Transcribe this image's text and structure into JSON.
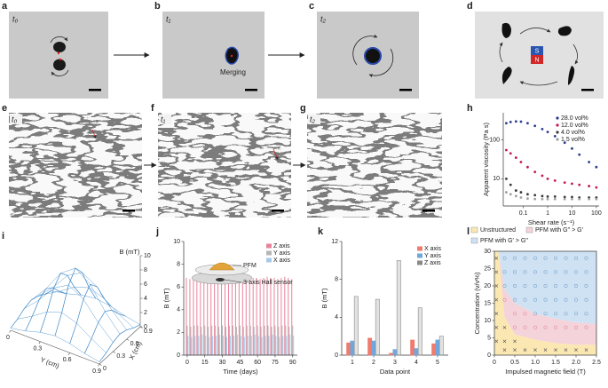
{
  "panel_letters": [
    "a",
    "b",
    "c",
    "d",
    "e",
    "f",
    "g",
    "h",
    "i",
    "j",
    "k",
    "l"
  ],
  "images": {
    "a_time": "t₀",
    "b_time": "t₁",
    "b_caption": "Merging",
    "c_time": "t₂",
    "d_s": "S",
    "d_n": "N",
    "e_time": "t₀",
    "f_time": "t₁",
    "g_time": "t₂"
  },
  "chart_data": [
    {
      "type": "scatter",
      "ylabel": "Apparent viscosity (Pa s)",
      "xlabel": "Shear rate (s⁻¹)",
      "log_x": true,
      "log_y": true,
      "legend": "upper right",
      "x": [
        0.02,
        0.03,
        0.05,
        0.08,
        0.15,
        0.3,
        0.6,
        1,
        2,
        5,
        10,
        20,
        50,
        100
      ],
      "series": [
        {
          "name": "28.0 vol%",
          "color": "#2a3b8f",
          "values": [
            270,
            290,
            300,
            295,
            270,
            230,
            190,
            160,
            125,
            85,
            60,
            42,
            27,
            20
          ]
        },
        {
          "name": "12.0 vol%",
          "color": "#c8174f",
          "values": [
            55,
            45,
            35,
            27,
            20,
            15,
            12,
            10,
            9,
            8,
            7.5,
            7,
            6.5,
            6
          ]
        },
        {
          "name": "4.0 vol%",
          "color": "#3a3a3a",
          "values": [
            10,
            7,
            5,
            4.5,
            4,
            3.8,
            3.6,
            3.5,
            3.5,
            3.4,
            3.4,
            3.3,
            3.3,
            3.3
          ]
        },
        {
          "name": "1.5 vol%",
          "color": "#a0a0a0",
          "values": [
            4.5,
            4,
            3.6,
            3.3,
            3.1,
            3,
            3,
            3,
            3,
            3,
            3,
            3,
            3,
            3
          ]
        }
      ],
      "xlim": [
        0.015,
        130
      ],
      "xticks": [
        0.1,
        1,
        10,
        100
      ],
      "ylim": [
        2,
        500
      ],
      "yticks": [
        10,
        100
      ]
    },
    {
      "type": "surface",
      "zlabel": "B (mT)",
      "xlabel": "X (cm)",
      "ylabel": "Y (cm)",
      "color": "#3a86c8",
      "x": [
        0,
        0.15,
        0.3,
        0.45,
        0.6,
        0.75,
        0.9
      ],
      "y": [
        0,
        0.15,
        0.3,
        0.45,
        0.6,
        0.75,
        0.9
      ],
      "z": [
        [
          0.3,
          0.7,
          1.3,
          1.6,
          1.3,
          0.7,
          0.3
        ],
        [
          0.7,
          1.9,
          3.3,
          4.0,
          3.3,
          1.9,
          0.7
        ],
        [
          1.3,
          3.3,
          5.8,
          7.0,
          5.8,
          3.3,
          1.3
        ],
        [
          1.6,
          4.0,
          7.0,
          8.5,
          7.0,
          4.0,
          1.6
        ],
        [
          1.3,
          3.3,
          5.8,
          7.0,
          5.8,
          3.3,
          1.3
        ],
        [
          0.7,
          1.9,
          3.3,
          4.0,
          3.3,
          1.9,
          0.7
        ],
        [
          0.3,
          0.7,
          1.3,
          1.6,
          1.3,
          0.7,
          0.3
        ]
      ],
      "xlim": [
        0,
        0.9
      ],
      "ylim": [
        0,
        0.9
      ],
      "zlim": [
        0,
        10
      ],
      "xticks": [
        0,
        0.3,
        0.6,
        0.9
      ],
      "yticks": [
        0,
        0.3,
        0.6,
        0.9
      ],
      "zticks": [
        0,
        2,
        4,
        6,
        8,
        10
      ]
    },
    {
      "type": "bar",
      "ylabel": "B (mT)",
      "xlabel": "Time (days)",
      "annotations": [
        "PFM",
        "3-axis Hall sensor"
      ],
      "legend": "upper right",
      "x": [
        0,
        3,
        6,
        9,
        12,
        15,
        18,
        21,
        24,
        27,
        30,
        33,
        36,
        39,
        42,
        45,
        48,
        51,
        54,
        57,
        60,
        63,
        66,
        69,
        72,
        75,
        78,
        81,
        84,
        87,
        90
      ],
      "series": [
        {
          "name": "Z axis",
          "color": "#e8829a",
          "values": [
            6.8,
            6.7,
            6.8,
            6.9,
            6.8,
            6.8,
            6.7,
            6.8,
            6.9,
            6.8,
            6.8,
            6.7,
            6.8,
            6.9,
            6.8,
            6.8,
            6.7,
            6.8,
            6.9,
            6.8,
            6.8,
            6.7,
            6.8,
            6.9,
            6.8,
            6.8,
            6.7,
            6.8,
            6.9,
            6.8,
            6.7
          ]
        },
        {
          "name": "Y axis",
          "color": "#b5b5b5",
          "values": [
            2.6,
            2.5,
            2.6,
            2.6,
            2.5,
            2.6,
            2.5,
            2.6,
            2.6,
            2.5,
            2.6,
            2.5,
            2.6,
            2.6,
            2.5,
            2.6,
            2.5,
            2.6,
            2.6,
            2.5,
            2.6,
            2.5,
            2.6,
            2.6,
            2.5,
            2.6,
            2.5,
            2.6,
            2.6,
            2.5,
            2.6
          ]
        },
        {
          "name": "X axis",
          "color": "#a8c8e8",
          "values": [
            1.7,
            1.6,
            1.7,
            1.7,
            1.8,
            1.7,
            1.6,
            1.7,
            1.7,
            1.8,
            1.7,
            1.6,
            1.7,
            1.7,
            1.8,
            1.7,
            1.6,
            1.7,
            1.7,
            1.8,
            1.7,
            1.6,
            1.7,
            1.7,
            1.8,
            1.7,
            1.6,
            1.7,
            1.7,
            1.8,
            1.7
          ]
        }
      ],
      "xlim": [
        -3,
        94
      ],
      "xticks": [
        0,
        15,
        30,
        45,
        60,
        75,
        90
      ],
      "ylim": [
        0,
        10
      ],
      "yticks": [
        0,
        2,
        4,
        6,
        8,
        10
      ]
    },
    {
      "type": "grouped_bar",
      "ylabel": "B (mT)",
      "xlabel": "Data point",
      "legend": "upper right",
      "categories": [
        "1",
        "2",
        "3",
        "4",
        "5"
      ],
      "series": [
        {
          "name": "X axis",
          "color": "#ef7a6e",
          "values": [
            1.3,
            1.8,
            0.2,
            1.6,
            1.2
          ]
        },
        {
          "name": "Y axis",
          "color": "#6fa8dc",
          "values": [
            1.5,
            1.5,
            0.6,
            0.7,
            1.6
          ]
        },
        {
          "name": "Z axis",
          "color": "#8a8a8a",
          "values": [
            6.2,
            5.9,
            10,
            5,
            2
          ]
        }
      ],
      "ylim": [
        0,
        12
      ],
      "yticks": [
        0,
        4,
        8,
        12
      ]
    },
    {
      "type": "phase",
      "xlabel": "Impulsed magnetic field (T)",
      "ylabel": "Concentration (v/v%)",
      "legend": "top",
      "x": [
        0,
        0.1,
        0.25,
        0.5,
        1,
        1.5,
        2,
        2.5
      ],
      "series": [
        {
          "name": "Unstructured",
          "color": "#fbe7b2",
          "marker_color": "#666666",
          "values": [
            30,
            30,
            11,
            6,
            4.5,
            3.5,
            3,
            3
          ],
          "points_x": [
            0.05,
            0.05,
            0.05,
            0.05,
            0.05,
            0.05,
            0.05,
            0.25,
            0.5,
            0.75,
            1,
            1.25,
            1.5,
            1.75,
            2,
            2.25,
            0.25,
            0.25,
            0.5
          ],
          "points_y": [
            4,
            8,
            12,
            16,
            20,
            24,
            28,
            1.5,
            1.5,
            1.5,
            1.5,
            1.5,
            1.5,
            1.5,
            1.5,
            1.5,
            4,
            8,
            4
          ]
        },
        {
          "name": "PFM with G′′ > G′",
          "color": "#f5d3da",
          "marker_color": "#e0909f",
          "values": [
            30,
            30,
            19,
            15,
            12,
            10.5,
            9.5,
            9
          ],
          "points_x": [
            0.75,
            1,
            1.25,
            1.5,
            1.75,
            2,
            2.25,
            0.5,
            0.5,
            0.75,
            0.25
          ],
          "points_y": [
            8,
            8,
            8,
            8,
            8,
            8,
            8,
            8,
            12,
            12,
            16
          ]
        },
        {
          "name": "PFM with G′ > G′′",
          "color": "#cfe2f3",
          "marker_color": "#7ea6cc",
          "values": [
            30,
            30,
            30,
            30,
            30,
            30,
            30,
            30
          ],
          "points_x": [
            1,
            1.25,
            1.5,
            1.75,
            2,
            2.25,
            0.5,
            0.75,
            1,
            1.25,
            1.5,
            1.75,
            2,
            2.25,
            0.25,
            0.5,
            0.75,
            1,
            1.25,
            1.5,
            1.75,
            2,
            2.25,
            0.25,
            0.5,
            0.75,
            1,
            1.25,
            1.5,
            1.75,
            2,
            2.25,
            0.25,
            0.5,
            0.75,
            1,
            1.25,
            1.5,
            1.75,
            2,
            2.25
          ],
          "points_y": [
            12,
            12,
            12,
            12,
            12,
            12,
            16,
            16,
            16,
            16,
            16,
            16,
            16,
            16,
            20,
            20,
            20,
            20,
            20,
            20,
            20,
            20,
            20,
            24,
            24,
            24,
            24,
            24,
            24,
            24,
            24,
            24,
            28,
            28,
            28,
            28,
            28,
            28,
            28,
            28,
            28
          ]
        }
      ],
      "xlim": [
        0,
        2.5
      ],
      "xticks": [
        0,
        0.5,
        {
          "value": 1,
          "label": "1.0"
        },
        1.5,
        {
          "value": 2,
          "label": "2.0"
        },
        2.5
      ],
      "ylim": [
        0,
        30
      ],
      "yticks": [
        0,
        5,
        10,
        15,
        20,
        25,
        30
      ]
    }
  ]
}
